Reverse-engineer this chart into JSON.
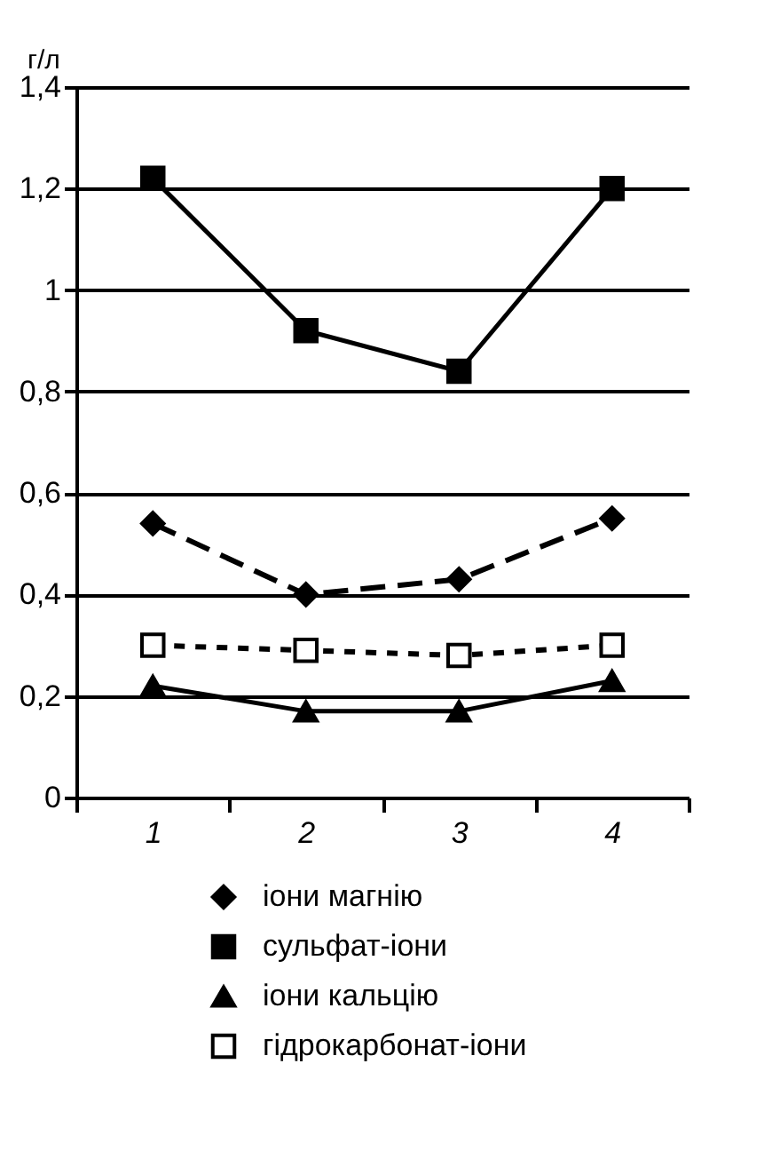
{
  "chart_data": {
    "type": "line",
    "ylabel": "г/л",
    "categories": [
      "1",
      "2",
      "3",
      "4"
    ],
    "series": [
      {
        "name": "іони магнію",
        "color": "#000000",
        "values": [
          0.54,
          0.4,
          0.43,
          0.55
        ],
        "marker": "diamond",
        "line_style": "dashed"
      },
      {
        "name": "сульфат-іони",
        "color": "#000000",
        "values": [
          1.22,
          0.92,
          0.84,
          1.2
        ],
        "marker": "square",
        "line_style": "solid"
      },
      {
        "name": "іони кальцію",
        "color": "#000000",
        "values": [
          0.22,
          0.17,
          0.17,
          0.23
        ],
        "marker": "triangle",
        "line_style": "solid"
      },
      {
        "name": "гідрокарбонат-іони",
        "color": "#000000",
        "values": [
          0.3,
          0.29,
          0.28,
          0.3
        ],
        "marker": "square_open",
        "line_style": "dotted"
      }
    ],
    "ylim": [
      0,
      1.4
    ],
    "yticks": [
      0,
      {
        "value": 0.2,
        "label": "0,2"
      },
      {
        "value": 0.4,
        "label": "0,4"
      },
      {
        "value": 0.6,
        "label": "0,6"
      },
      {
        "value": 0.8,
        "label": "0,8"
      },
      1,
      {
        "value": 1.2,
        "label": "1,2"
      },
      {
        "value": 1.4,
        "label": "1,4"
      }
    ],
    "grid": "y",
    "legend": "bottom"
  }
}
